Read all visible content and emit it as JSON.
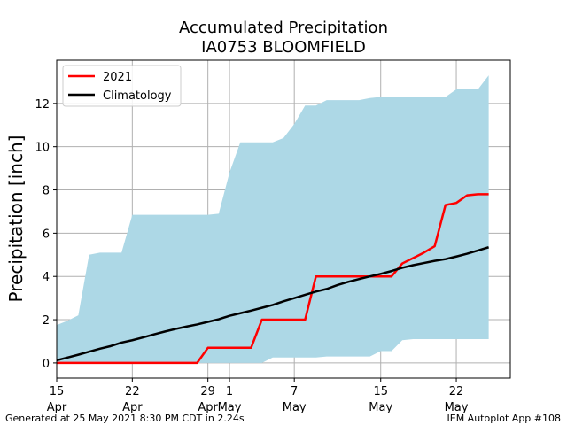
{
  "chart_data": {
    "type": "line",
    "title": "Accumulated Precipitation",
    "subtitle": "IA0753 BLOOMFIELD",
    "xlabel": "",
    "ylabel": "Precipitation [inch]",
    "ylim": [
      -0.7,
      14.0
    ],
    "grid": true,
    "legend_placement": "top-left",
    "x_ticks": [
      {
        "day": 0,
        "line1": "15",
        "line2": "Apr"
      },
      {
        "day": 7,
        "line1": "22",
        "line2": "Apr"
      },
      {
        "day": 14,
        "line1": "29",
        "line2": "Apr"
      },
      {
        "day": 16,
        "line1": "1",
        "line2": "May"
      },
      {
        "day": 22,
        "line1": "7",
        "line2": "May"
      },
      {
        "day": 30,
        "line1": "15",
        "line2": "May"
      },
      {
        "day": 37,
        "line1": "22",
        "line2": "May"
      }
    ],
    "y_ticks": [
      0,
      2,
      4,
      6,
      8,
      10,
      12
    ],
    "xlim": [
      0,
      42
    ],
    "band": {
      "color": "#add8e6",
      "x": [
        0,
        1,
        2,
        3,
        4,
        5,
        6,
        7,
        8,
        9,
        10,
        11,
        12,
        13,
        14,
        15,
        16,
        17,
        18,
        19,
        20,
        21,
        22,
        23,
        24,
        25,
        26,
        27,
        28,
        29,
        30,
        31,
        32,
        33,
        34,
        35,
        36,
        37,
        38,
        39,
        40
      ],
      "upper": [
        1.75,
        1.95,
        2.2,
        5.0,
        5.1,
        5.1,
        5.1,
        6.85,
        6.85,
        6.85,
        6.85,
        6.85,
        6.85,
        6.85,
        6.85,
        6.9,
        8.8,
        10.2,
        10.2,
        10.2,
        10.2,
        10.4,
        11.05,
        11.9,
        11.9,
        12.15,
        12.15,
        12.15,
        12.15,
        12.25,
        12.3,
        12.3,
        12.3,
        12.3,
        12.3,
        12.3,
        12.3,
        12.65,
        12.65,
        12.65,
        13.3
      ],
      "lower": [
        0,
        0,
        0,
        0,
        0,
        0,
        0,
        0,
        0,
        0,
        0,
        0,
        0,
        0,
        0,
        0,
        0,
        0,
        0,
        0,
        0.25,
        0.25,
        0.25,
        0.25,
        0.25,
        0.3,
        0.3,
        0.3,
        0.3,
        0.3,
        0.55,
        0.55,
        1.05,
        1.1,
        1.1,
        1.1,
        1.1,
        1.1,
        1.1,
        1.1,
        1.1
      ]
    },
    "series": [
      {
        "name": "2021",
        "color": "#ff0000",
        "x": [
          0,
          1,
          2,
          3,
          4,
          5,
          6,
          7,
          8,
          9,
          10,
          11,
          12,
          13,
          14,
          15,
          16,
          17,
          18,
          19,
          20,
          21,
          22,
          23,
          24,
          25,
          26,
          27,
          28,
          29,
          30,
          31,
          32,
          33,
          34,
          35,
          36,
          37,
          38,
          39,
          40
        ],
        "values": [
          0,
          0,
          0,
          0,
          0,
          0,
          0,
          0,
          0,
          0,
          0,
          0,
          0,
          0,
          0.7,
          0.7,
          0.7,
          0.7,
          0.7,
          2.0,
          2.0,
          2.0,
          2.0,
          2.0,
          4.0,
          4.0,
          4.0,
          4.0,
          4.0,
          4.0,
          4.0,
          4.0,
          4.6,
          4.85,
          5.1,
          5.4,
          7.3,
          7.4,
          7.75,
          7.8,
          7.8
        ]
      },
      {
        "name": "Climatology",
        "color": "#000000",
        "x": [
          0,
          1,
          2,
          3,
          4,
          5,
          6,
          7,
          8,
          9,
          10,
          11,
          12,
          13,
          14,
          15,
          16,
          17,
          18,
          19,
          20,
          21,
          22,
          23,
          24,
          25,
          26,
          27,
          28,
          29,
          30,
          31,
          32,
          33,
          34,
          35,
          36,
          37,
          38,
          39,
          40
        ],
        "values": [
          0.12,
          0.25,
          0.38,
          0.52,
          0.66,
          0.78,
          0.94,
          1.05,
          1.18,
          1.32,
          1.45,
          1.57,
          1.68,
          1.78,
          1.9,
          2.02,
          2.18,
          2.3,
          2.42,
          2.55,
          2.68,
          2.85,
          3.0,
          3.15,
          3.3,
          3.42,
          3.6,
          3.75,
          3.88,
          4.0,
          4.12,
          4.25,
          4.4,
          4.52,
          4.62,
          4.72,
          4.8,
          4.92,
          5.05,
          5.2,
          5.35
        ]
      }
    ]
  },
  "footer": {
    "left": "Generated at 25 May 2021 8:30 PM CDT in 2.24s",
    "right": "IEM Autoplot App #108"
  }
}
